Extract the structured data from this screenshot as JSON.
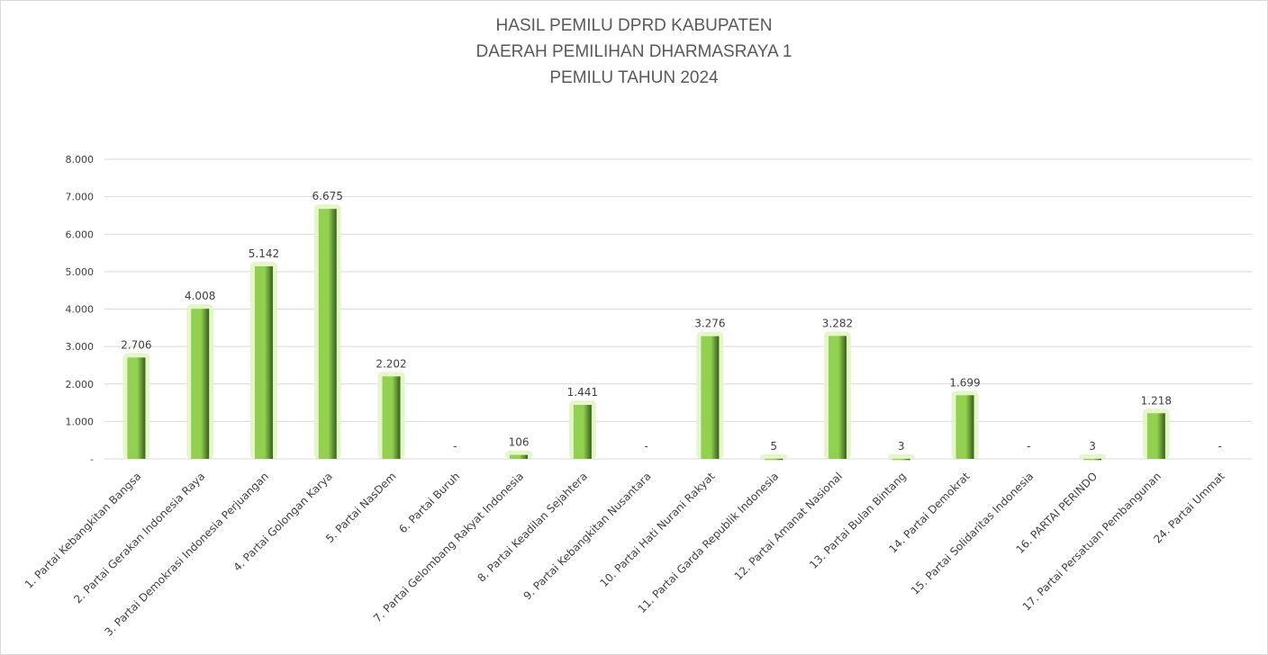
{
  "chart_data": {
    "type": "bar",
    "title": [
      "HASIL PEMILU DPRD KABUPATEN",
      "DAERAH PEMILIHAN DHARMASRAYA 1",
      "PEMILU TAHUN 2024"
    ],
    "categories": [
      "1. Partai Kebangkitan Bangsa",
      "2. Partai Gerakan Indonesia Raya",
      "3. Partai Demokrasi Indonesia Perjuangan",
      "4. Partai Golongan Karya",
      "5. Partai NasDem",
      "6. Partai Buruh",
      "7. Partai Gelombang Rakyat Indonesia",
      "8. Partai Keadilan Sejahtera",
      "9. Partai Kebangkitan Nusantara",
      "10. Partai Hati Nurani Rakyat",
      "11. Partai Garda Republik Indonesia",
      "12. Partai Amanat Nasional",
      "13. Partai Bulan Bintang",
      "14. Partai Demokrat",
      "15. Partai Solidaritas Indonesia",
      "16. PARTAI PERINDO",
      "17. Partai Persatuan Pembangunan",
      "24. Partai Ummat"
    ],
    "values": [
      2706,
      4008,
      5142,
      6675,
      2202,
      0,
      106,
      1441,
      0,
      3276,
      5,
      3282,
      3,
      1699,
      0,
      3,
      1218,
      0
    ],
    "data_labels": [
      "2.706",
      "4.008",
      "5.142",
      "6.675",
      "2.202",
      "-",
      "106",
      "1.441",
      "-",
      "3.276",
      "5",
      "3.282",
      "3",
      "1.699",
      "-",
      "3",
      "1.218",
      "-"
    ],
    "y_ticks": [
      {
        "value": 0,
        "label": "-"
      },
      {
        "value": 1000,
        "label": "1.000"
      },
      {
        "value": 2000,
        "label": "2.000"
      },
      {
        "value": 3000,
        "label": "3.000"
      },
      {
        "value": 4000,
        "label": "4.000"
      },
      {
        "value": 5000,
        "label": "5.000"
      },
      {
        "value": 6000,
        "label": "6.000"
      },
      {
        "value": 7000,
        "label": "7.000"
      },
      {
        "value": 8000,
        "label": "8.000"
      }
    ],
    "ylim": [
      0,
      8000
    ],
    "grid": true,
    "legend": "none",
    "colors": {
      "bar_light": "#92d050",
      "bar_dark": "#375f1b",
      "glow": "#e2f5c4",
      "grid": "#d9d9d9",
      "text": "#404040",
      "title": "#595959"
    }
  }
}
